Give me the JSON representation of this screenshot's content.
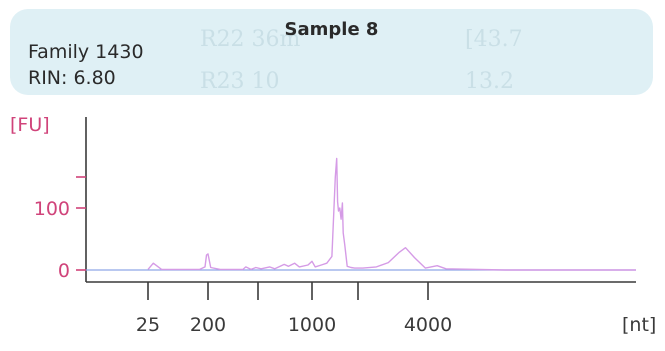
{
  "header": {
    "sample_title": "Sample 8",
    "family": "Family 1430",
    "rin": "RIN: 6.80",
    "ghost_text": [
      "R22 36m",
      "R23 10",
      "[43.7",
      "13.2"
    ]
  },
  "colors": {
    "panel": "#dff0f5",
    "axis_label": "#d0437a",
    "trace": "#d59be6",
    "baseline": "#8fa8e8",
    "axis": "#3a3a3a"
  },
  "chart_data": {
    "type": "line",
    "title": "",
    "ylabel": "[FU]",
    "xlabel": "[nt]",
    "ylim": [
      -5,
      185
    ],
    "yticks": [
      0,
      100
    ],
    "x_tick_labels": [
      "25",
      "200",
      "1000",
      "4000"
    ],
    "x_minor_ticks": [
      "25",
      "200",
      "500",
      "1000",
      "2000",
      "4000"
    ],
    "x_positions_nt": [
      25,
      200,
      500,
      1000,
      2000,
      4000
    ],
    "series": [
      {
        "values": [
          [
            25,
            1
          ],
          [
            30,
            11
          ],
          [
            40,
            1
          ],
          [
            150,
            1
          ],
          [
            180,
            5
          ],
          [
            190,
            24
          ],
          [
            200,
            26
          ],
          [
            210,
            4
          ],
          [
            250,
            1
          ],
          [
            380,
            1
          ],
          [
            400,
            5
          ],
          [
            440,
            1
          ],
          [
            480,
            4
          ],
          [
            520,
            2
          ],
          [
            580,
            5
          ],
          [
            620,
            2
          ],
          [
            700,
            9
          ],
          [
            740,
            6
          ],
          [
            800,
            11
          ],
          [
            850,
            5
          ],
          [
            950,
            8
          ],
          [
            1000,
            14
          ],
          [
            1050,
            5
          ],
          [
            1150,
            8
          ],
          [
            1250,
            11
          ],
          [
            1350,
            22
          ],
          [
            1420,
            150
          ],
          [
            1450,
            180
          ],
          [
            1470,
            110
          ],
          [
            1490,
            95
          ],
          [
            1520,
            100
          ],
          [
            1550,
            82
          ],
          [
            1580,
            108
          ],
          [
            1600,
            60
          ],
          [
            1640,
            40
          ],
          [
            1700,
            6
          ],
          [
            1800,
            4
          ],
          [
            1900,
            3
          ],
          [
            2100,
            3
          ],
          [
            2400,
            5
          ],
          [
            2700,
            12
          ],
          [
            3000,
            28
          ],
          [
            3200,
            36
          ],
          [
            3500,
            20
          ],
          [
            3900,
            3
          ],
          [
            4200,
            7
          ],
          [
            4400,
            2
          ],
          [
            6000,
            0
          ],
          [
            12000,
            0
          ]
        ]
      }
    ]
  }
}
